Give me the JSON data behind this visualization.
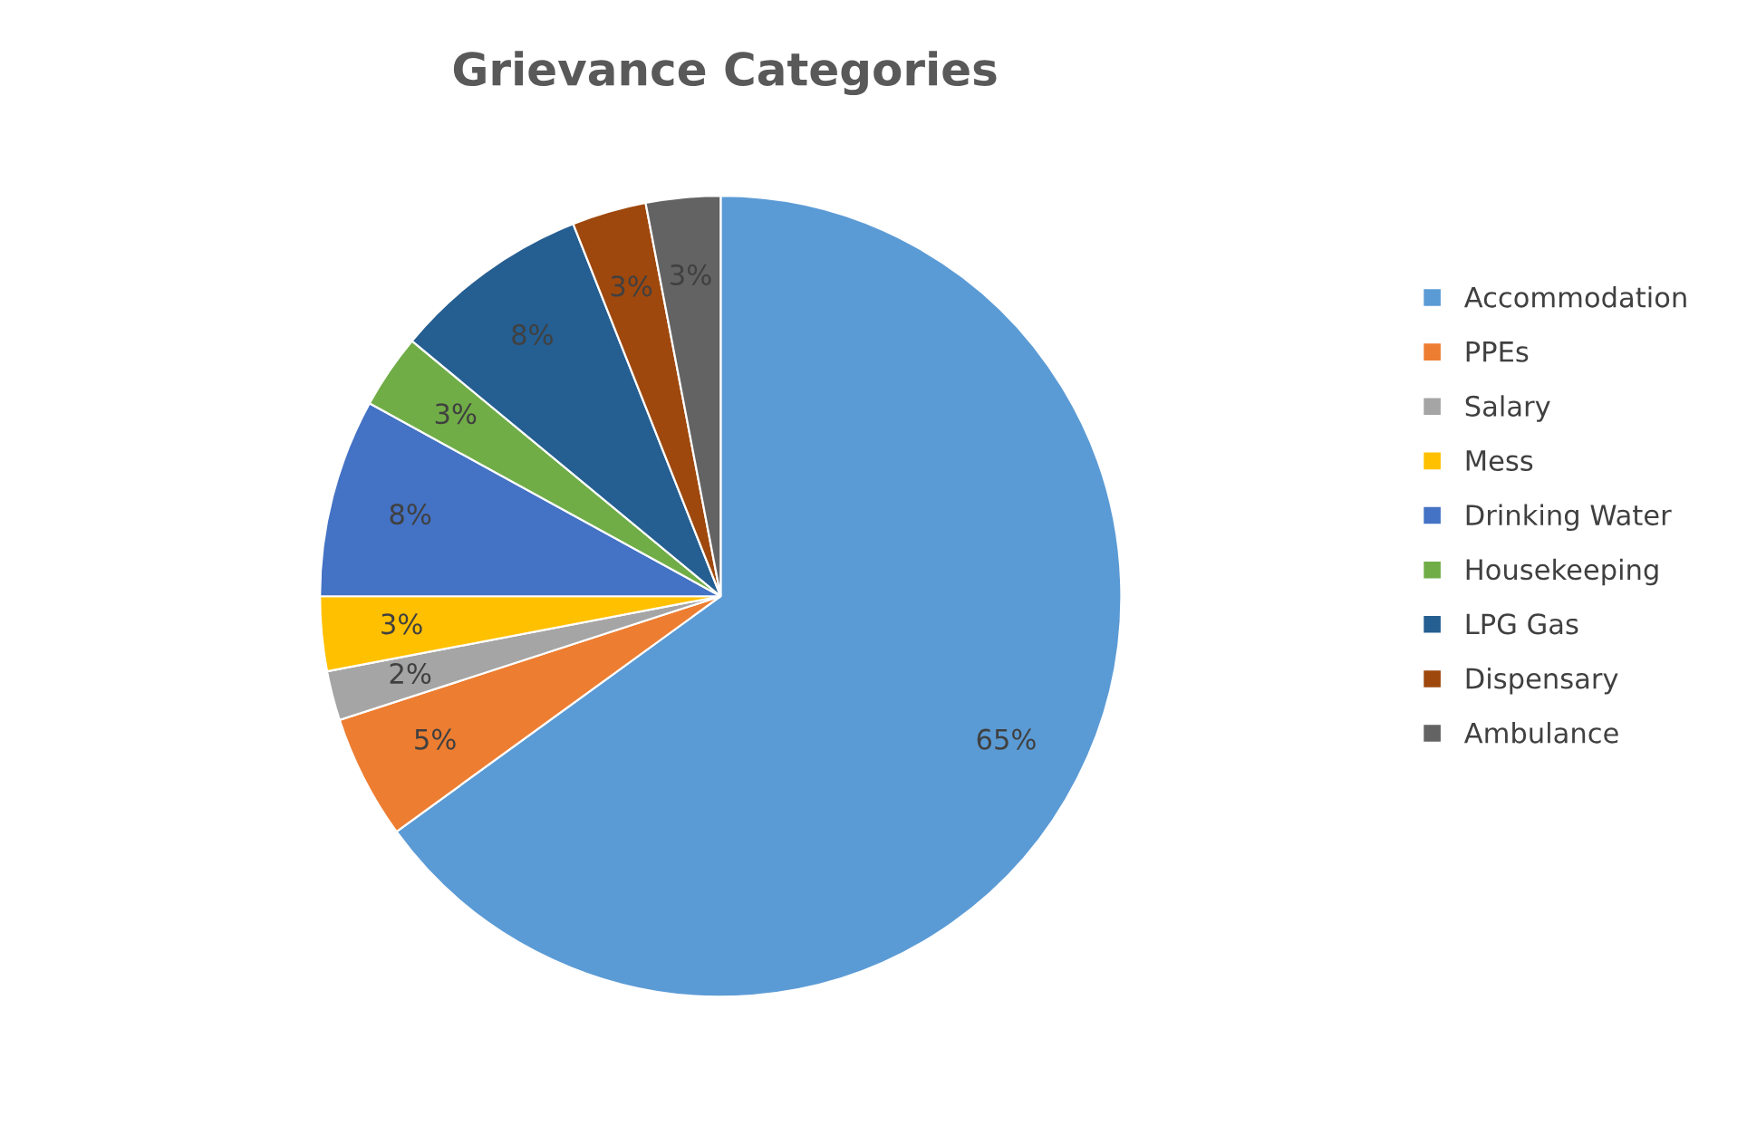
{
  "chart_data": {
    "type": "pie",
    "title": "Grievance Categories",
    "categories": [
      "Accommodation",
      "PPEs",
      "Salary",
      "Mess",
      "Drinking Water",
      "Housekeeping",
      "LPG Gas",
      "Dispensary",
      "Ambulance"
    ],
    "values": [
      65,
      5,
      2,
      3,
      8,
      3,
      8,
      3,
      3
    ],
    "value_labels": [
      "65%",
      "5%",
      "2%",
      "3%",
      "8%",
      "3%",
      "8%",
      "3%",
      "3%"
    ],
    "colors": [
      "#5b9bd5",
      "#ed7d31",
      "#a5a5a5",
      "#ffc000",
      "#4472c4",
      "#70ad47",
      "#255e91",
      "#9e480e",
      "#636363"
    ],
    "legend": "right"
  }
}
